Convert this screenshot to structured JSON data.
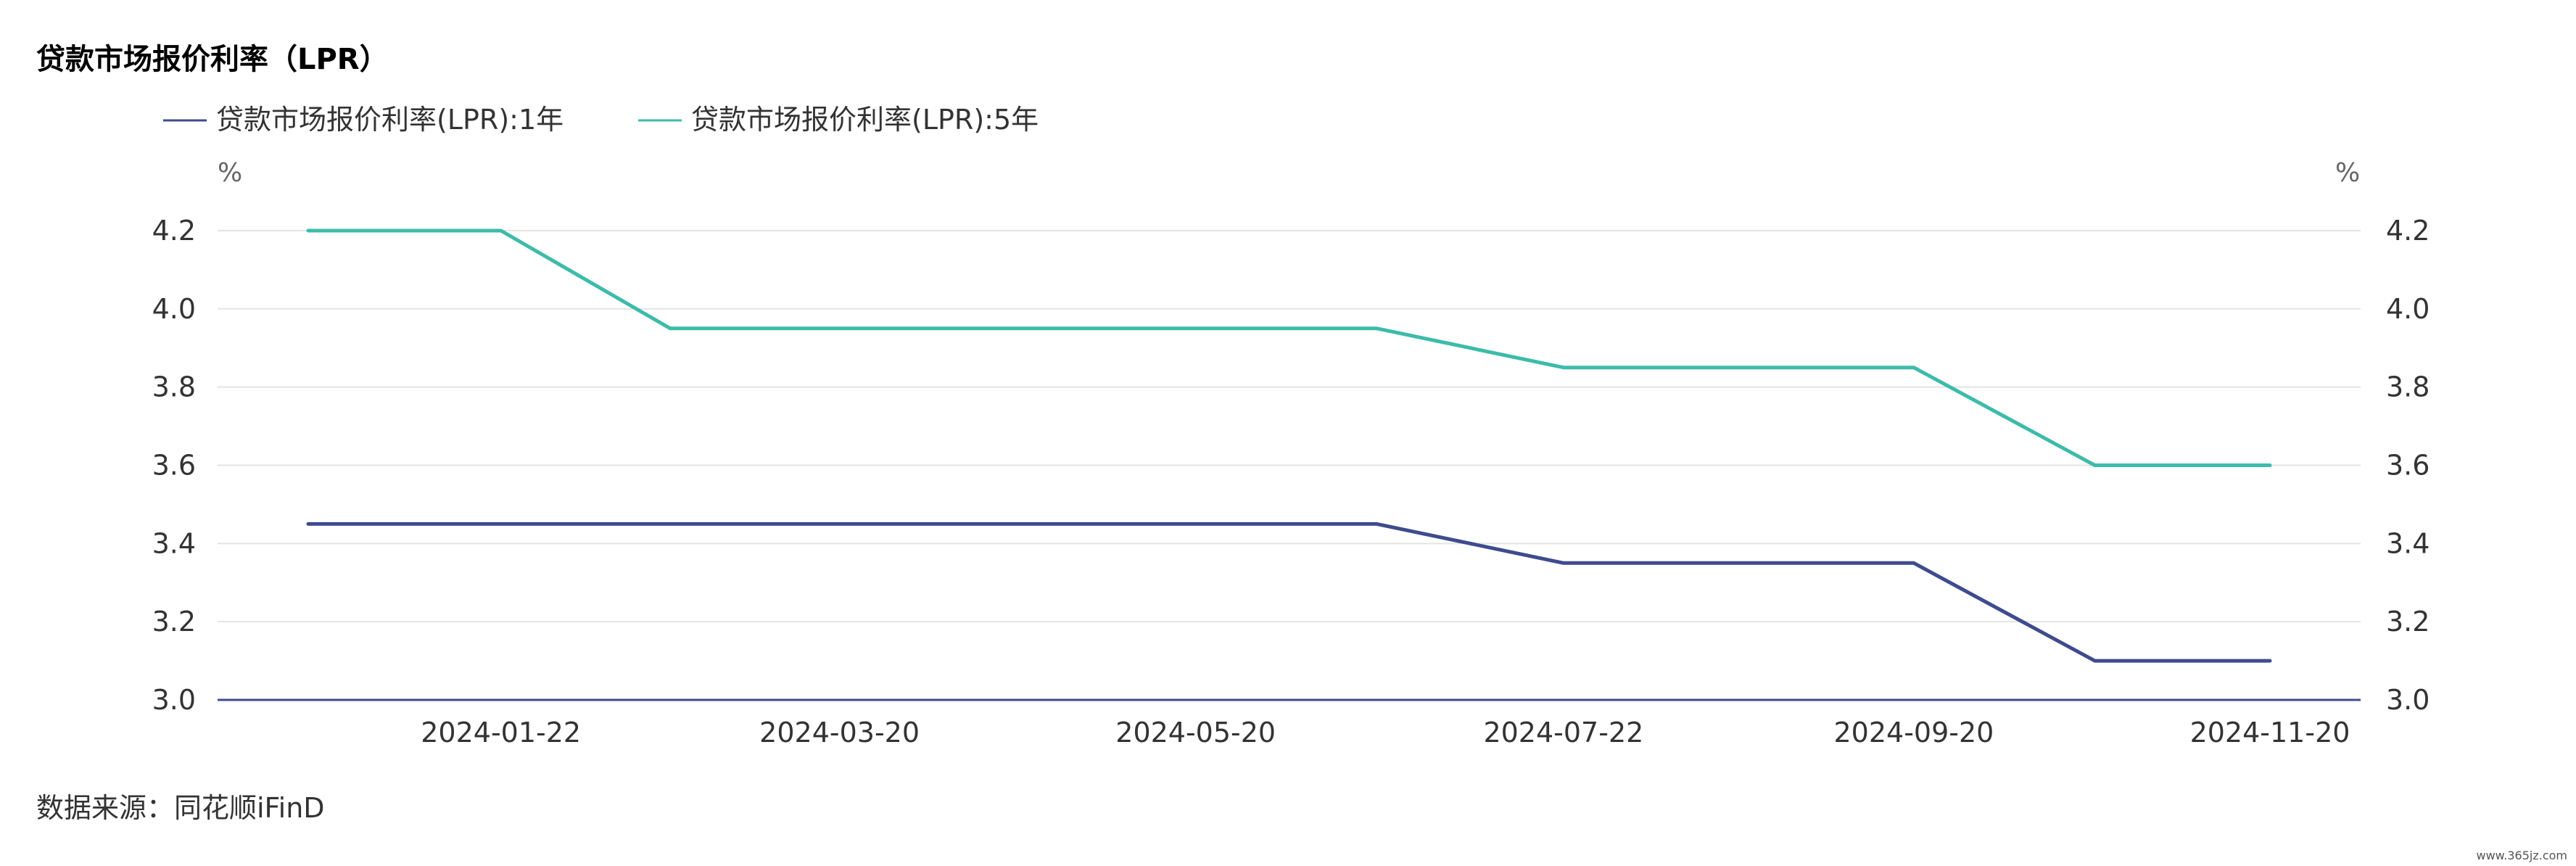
{
  "chart_data": {
    "type": "line",
    "title": "贷款市场报价利率（LPR）",
    "y_unit_left": "%",
    "y_unit_right": "%",
    "ylim": [
      3.0,
      4.2
    ],
    "yticks": [
      "4.2",
      "4.0",
      "3.8",
      "3.6",
      "3.4",
      "3.2",
      "3.0"
    ],
    "x_tick_labels": [
      "2024-01-22",
      "2024-03-20",
      "2024-05-20",
      "2024-07-22",
      "2024-09-20",
      "2024-11-20"
    ],
    "x": [
      "2023-12-20",
      "2024-01-22",
      "2024-02-20",
      "2024-03-20",
      "2024-04-22",
      "2024-05-20",
      "2024-06-20",
      "2024-07-22",
      "2024-08-20",
      "2024-09-20",
      "2024-10-21",
      "2024-11-20"
    ],
    "series": [
      {
        "name": "贷款市场报价利率(LPR):1年",
        "color": "#3f4b8e",
        "values": [
          3.45,
          3.45,
          3.45,
          3.45,
          3.45,
          3.45,
          3.45,
          3.35,
          3.35,
          3.35,
          3.1,
          3.1
        ]
      },
      {
        "name": "贷款市场报价利率(LPR):5年",
        "color": "#3dbbaa",
        "values": [
          4.2,
          4.2,
          3.95,
          3.95,
          3.95,
          3.95,
          3.95,
          3.85,
          3.85,
          3.85,
          3.6,
          3.6
        ]
      }
    ],
    "grid": true,
    "legend_position": "top-left"
  },
  "source": "数据来源：同花顺iFinD",
  "watermark": "www.365jz.com"
}
